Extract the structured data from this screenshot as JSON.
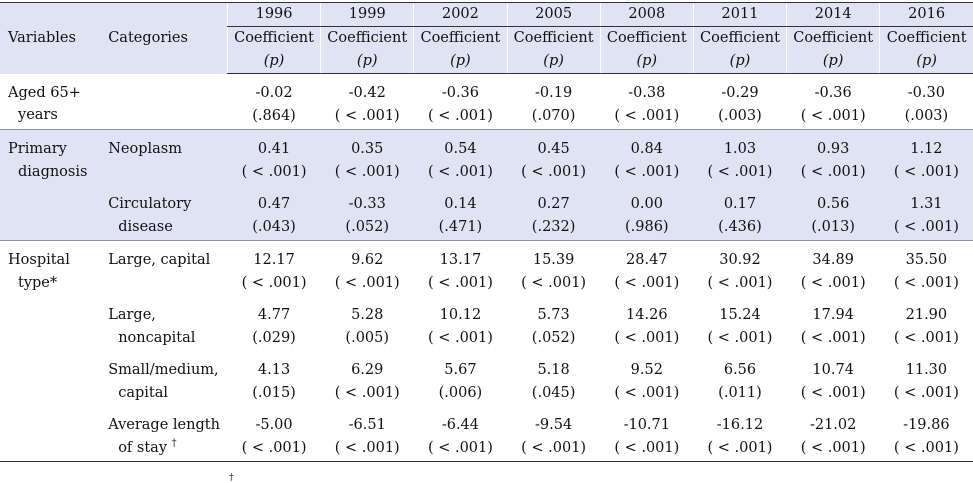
{
  "header": {
    "variables": "Variables",
    "categories": "Categories",
    "years": [
      "1996",
      "1999",
      "2002",
      "2005",
      "2008",
      "2011",
      "2014",
      "2016"
    ],
    "coef_label": "Coefficient",
    "p_label": "(p)"
  },
  "rows": [
    {
      "var1": "Aged 65+",
      "var2": "years",
      "cat1": "",
      "cat2": "",
      "coef": [
        "-0.02",
        "-0.42",
        "-0.36",
        "-0.19",
        "-0.38",
        "-0.29",
        "-0.36",
        "-0.30"
      ],
      "p": [
        "(.864)",
        "( < .001)",
        "( < .001)",
        "(.070)",
        "( < .001)",
        "(.003)",
        "( < .001)",
        "(.003)"
      ]
    },
    {
      "var1": "Primary",
      "var2": "diagnosis",
      "cat1": "Neoplasm",
      "cat2": "",
      "coef": [
        "0.41",
        "0.35",
        "0.54",
        "0.45",
        "0.84",
        "1.03",
        "0.93",
        "1.12"
      ],
      "p": [
        "( < .001)",
        "( < .001)",
        "( < .001)",
        "( < .001)",
        "( < .001)",
        "( < .001)",
        "( < .001)",
        "( < .001)"
      ]
    },
    {
      "var1": "",
      "var2": "",
      "cat1": "Circulatory",
      "cat2": "disease",
      "coef": [
        "0.47",
        "-0.33",
        "0.14",
        "0.27",
        "0.00",
        "0.17",
        "0.56",
        "1.31"
      ],
      "p": [
        "(.043)",
        "(.052)",
        "(.471)",
        "(.232)",
        "(.986)",
        "(.436)",
        "(.013)",
        "( < .001)"
      ]
    },
    {
      "var1": "Hospital",
      "var2": "type*",
      "cat1": "Large, capital",
      "cat2": "",
      "coef": [
        "12.17",
        "9.62",
        "13.17",
        "15.39",
        "28.47",
        "30.92",
        "34.89",
        "35.50"
      ],
      "p": [
        "( < .001)",
        "( < .001)",
        "( < .001)",
        "( < .001)",
        "( < .001)",
        "( < .001)",
        "( < .001)",
        "( < .001)"
      ]
    },
    {
      "var1": "",
      "var2": "",
      "cat1": "Large,",
      "cat2": "noncapital",
      "coef": [
        "4.77",
        "5.28",
        "10.12",
        "5.73",
        "14.26",
        "15.24",
        "17.94",
        "21.90"
      ],
      "p": [
        "(.029)",
        "(.005)",
        "( < .001)",
        "(.052)",
        "( < .001)",
        "( < .001)",
        "( < .001)",
        "( < .001)"
      ]
    },
    {
      "var1": "",
      "var2": "",
      "cat1": "Small/medium,",
      "cat2": "capital",
      "coef": [
        "4.13",
        "6.29",
        "5.67",
        "5.18",
        "9.52",
        "6.56",
        "10.74",
        "11.30"
      ],
      "p": [
        "(.015)",
        "( < .001)",
        "(.006)",
        "(.045)",
        "( < .001)",
        "(.011)",
        "( < .001)",
        "( < .001)"
      ]
    },
    {
      "var1": "",
      "var2": "",
      "cat1": "Average length",
      "cat2": "of stay",
      "cat2_mark": "†",
      "coef": [
        "-5.00",
        "-6.51",
        "-6.44",
        "-9.54",
        "-10.71",
        "-16.12",
        "-21.02",
        "-19.86"
      ],
      "p": [
        "( < .001)",
        "( < .001)",
        "( < .001)",
        "( < .001)",
        "( < .001)",
        "( < .001)",
        "( < .001)",
        "( < .001)"
      ]
    }
  ],
  "footnote_mark": "†"
}
